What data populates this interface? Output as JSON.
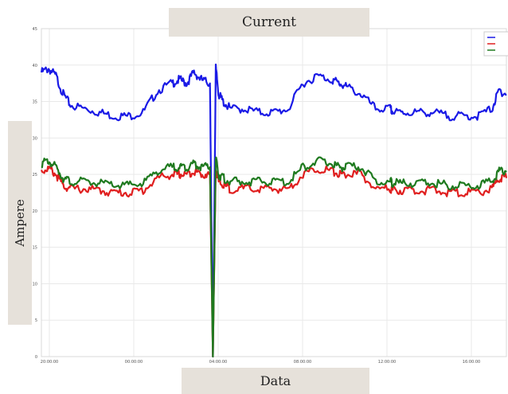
{
  "chart_data": {
    "type": "line",
    "title": "Current",
    "xlabel": "Data",
    "ylabel": "Ampere",
    "ylim": [
      0,
      45
    ],
    "yticks": [
      0,
      5,
      10,
      15,
      20,
      25,
      30,
      35,
      40,
      45
    ],
    "xticks": [
      "20:00:00",
      "00:00:00",
      "04:00:00",
      "08:00:00",
      "12:00:00",
      "16:00:00"
    ],
    "grid": true,
    "legend_position": "top-right",
    "x": [
      0,
      0.5,
      1,
      1.5,
      2,
      3,
      4,
      5,
      6,
      7,
      8,
      9,
      9.5,
      10,
      10.5,
      11,
      11.6,
      11.8,
      12,
      12.2,
      12.5,
      13,
      14,
      15,
      16,
      17,
      18,
      19,
      20,
      20.5,
      21,
      22,
      23,
      24,
      24.2,
      25,
      26,
      27,
      28,
      29,
      30,
      31,
      31.5,
      32
    ],
    "series": [
      {
        "name": "",
        "color": "#1a1ae6",
        "values": [
          39,
          39.5,
          38.5,
          36,
          34.5,
          34,
          33.5,
          33,
          33,
          33.5,
          36.5,
          37.5,
          38,
          37.5,
          39,
          38,
          37.5,
          0,
          39.5,
          36,
          35,
          34,
          34,
          33.5,
          33.5,
          34,
          37.5,
          38.5,
          38,
          37.5,
          37,
          36,
          34,
          34,
          33.5,
          33.5,
          33.5,
          33.5,
          33,
          33,
          33,
          34,
          36.5,
          36
        ]
      },
      {
        "name": "",
        "color": "#e01f1f",
        "values": [
          25.5,
          25.8,
          25,
          23.5,
          23,
          23,
          22.8,
          22.5,
          22.5,
          22.8,
          24.5,
          25,
          25,
          25,
          25.5,
          25,
          25,
          0,
          26,
          24,
          23.5,
          23,
          23,
          23,
          23,
          23,
          25,
          25.8,
          25.5,
          25,
          25,
          25,
          23,
          23,
          22.8,
          22.8,
          22.8,
          22.8,
          22.5,
          22.5,
          22.5,
          23,
          24.5,
          24.5
        ]
      },
      {
        "name": "",
        "color": "#1f7a1f",
        "values": [
          26.5,
          26.8,
          26,
          24.5,
          24,
          24,
          23.8,
          23.5,
          23.5,
          23.8,
          25.5,
          26,
          26,
          26,
          26.5,
          26,
          26,
          0,
          27,
          25,
          24.5,
          24,
          24,
          24,
          24,
          24,
          26,
          26.8,
          26.5,
          26,
          26,
          26,
          24,
          24,
          23.8,
          23.8,
          23.8,
          23.8,
          23.5,
          23.5,
          23.5,
          24,
          25.5,
          25.5
        ]
      }
    ]
  }
}
